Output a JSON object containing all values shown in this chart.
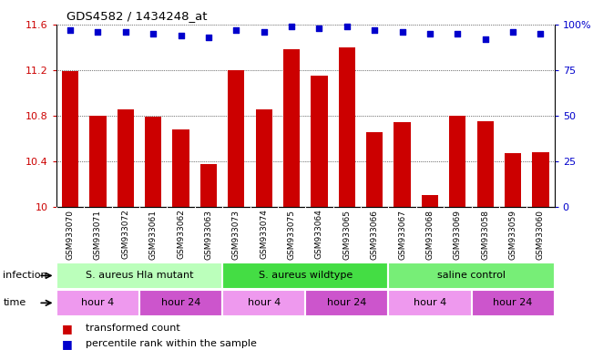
{
  "title": "GDS4582 / 1434248_at",
  "samples": [
    "GSM933070",
    "GSM933071",
    "GSM933072",
    "GSM933061",
    "GSM933062",
    "GSM933063",
    "GSM933073",
    "GSM933074",
    "GSM933075",
    "GSM933064",
    "GSM933065",
    "GSM933066",
    "GSM933067",
    "GSM933068",
    "GSM933069",
    "GSM933058",
    "GSM933059",
    "GSM933060"
  ],
  "bar_values": [
    11.19,
    10.8,
    10.85,
    10.79,
    10.68,
    10.37,
    11.2,
    10.85,
    11.38,
    11.15,
    11.4,
    10.65,
    10.74,
    10.1,
    10.8,
    10.75,
    10.47,
    10.48
  ],
  "percentile_values": [
    97,
    96,
    96,
    95,
    94,
    93,
    97,
    96,
    99,
    98,
    99,
    97,
    96,
    95,
    95,
    92,
    96,
    95
  ],
  "bar_color": "#cc0000",
  "percentile_color": "#0000cc",
  "ylim_left": [
    10.0,
    11.6
  ],
  "ylim_right": [
    0,
    100
  ],
  "yticks_left": [
    10.0,
    10.4,
    10.8,
    11.2,
    11.6
  ],
  "yticks_right": [
    0,
    25,
    50,
    75,
    100
  ],
  "ytick_labels_left": [
    "10",
    "10.4",
    "10.8",
    "11.2",
    "11.6"
  ],
  "ytick_labels_right": [
    "0",
    "25",
    "50",
    "75",
    "100%"
  ],
  "groups": [
    {
      "label": "S. aureus Hla mutant",
      "start": 0,
      "end": 6,
      "color": "#bbffbb"
    },
    {
      "label": "S. aureus wildtype",
      "start": 6,
      "end": 12,
      "color": "#44dd44"
    },
    {
      "label": "saline control",
      "start": 12,
      "end": 18,
      "color": "#77ee77"
    }
  ],
  "time_groups": [
    {
      "label": "hour 4",
      "start": 0,
      "end": 3,
      "color": "#ee99ee"
    },
    {
      "label": "hour 24",
      "start": 3,
      "end": 6,
      "color": "#cc55cc"
    },
    {
      "label": "hour 4",
      "start": 6,
      "end": 9,
      "color": "#ee99ee"
    },
    {
      "label": "hour 24",
      "start": 9,
      "end": 12,
      "color": "#cc55cc"
    },
    {
      "label": "hour 4",
      "start": 12,
      "end": 15,
      "color": "#ee99ee"
    },
    {
      "label": "hour 24",
      "start": 15,
      "end": 18,
      "color": "#cc55cc"
    }
  ],
  "infection_label": "infection",
  "time_label": "time",
  "legend_items": [
    {
      "color": "#cc0000",
      "label": "transformed count"
    },
    {
      "color": "#0000cc",
      "label": "percentile rank within the sample"
    }
  ],
  "bar_width": 0.6,
  "plot_bg_color": "#ffffff",
  "xtick_bg_color": "#cccccc"
}
